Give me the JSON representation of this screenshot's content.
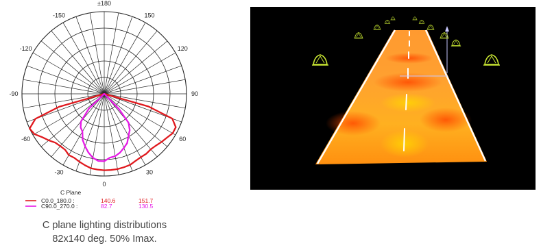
{
  "chart_data": {
    "type": "polar",
    "angle_labels": [
      {
        "angle": 180,
        "label": "±180"
      },
      {
        "angle": -150,
        "label": "-150"
      },
      {
        "angle": 150,
        "label": "150"
      },
      {
        "angle": -120,
        "label": "-120"
      },
      {
        "angle": 120,
        "label": "120"
      },
      {
        "angle": -90,
        "label": "-90"
      },
      {
        "angle": 90,
        "label": "90"
      },
      {
        "angle": -60,
        "label": "-60"
      },
      {
        "angle": 60,
        "label": "60"
      },
      {
        "angle": -30,
        "label": "-30"
      },
      {
        "angle": 30,
        "label": "30"
      },
      {
        "angle": 0,
        "label": "0"
      }
    ],
    "legend_title": "C Plane",
    "series": [
      {
        "name": "C0.0_180.0 :",
        "color": "#e0191e",
        "values_text": [
          "140.6",
          "151.7"
        ],
        "points": [
          [
            -74,
            0.57
          ],
          [
            -70,
            0.89
          ],
          [
            -65,
            1.0
          ],
          [
            -60,
            0.98
          ],
          [
            -55,
            0.92
          ],
          [
            -50,
            0.88
          ],
          [
            -45,
            0.84
          ],
          [
            -40,
            0.83
          ],
          [
            -35,
            0.83
          ],
          [
            -30,
            0.86
          ],
          [
            -25,
            0.86
          ],
          [
            -20,
            0.88
          ],
          [
            -15,
            0.9
          ],
          [
            -10,
            0.92
          ],
          [
            -5,
            0.925
          ],
          [
            0,
            0.93
          ],
          [
            5,
            0.93
          ],
          [
            10,
            0.93
          ],
          [
            15,
            0.925
          ],
          [
            20,
            0.92
          ],
          [
            25,
            0.9
          ],
          [
            30,
            0.89
          ],
          [
            35,
            0.89
          ],
          [
            40,
            0.88
          ],
          [
            45,
            0.89
          ],
          [
            50,
            0.91
          ],
          [
            55,
            0.93
          ],
          [
            60,
            0.96
          ],
          [
            65,
            0.96
          ],
          [
            70,
            0.88
          ],
          [
            74,
            0.56
          ]
        ]
      },
      {
        "name": "C90.0_270.0 :",
        "color": "#e619e6",
        "values_text": [
          "82.7",
          "130.5"
        ],
        "points": [
          [
            -46,
            0.26
          ],
          [
            -40,
            0.44
          ],
          [
            -35,
            0.5
          ],
          [
            -30,
            0.53
          ],
          [
            -25,
            0.62
          ],
          [
            -20,
            0.68
          ],
          [
            -15,
            0.74
          ],
          [
            -10,
            0.79
          ],
          [
            -5,
            0.82
          ],
          [
            0,
            0.82
          ],
          [
            5,
            0.78
          ],
          [
            10,
            0.77
          ],
          [
            15,
            0.74
          ],
          [
            20,
            0.7
          ],
          [
            25,
            0.66
          ],
          [
            30,
            0.59
          ],
          [
            35,
            0.54
          ],
          [
            40,
            0.46
          ],
          [
            44,
            0.26
          ]
        ]
      }
    ]
  },
  "caption": {
    "line1": "C plane lighting distributions",
    "line2": "82x140 deg. 50% Imax."
  },
  "colors": {
    "road_orange": "#ff8a00",
    "road_yellow": "#ffc800",
    "luminaire_green": "#c8e632"
  }
}
